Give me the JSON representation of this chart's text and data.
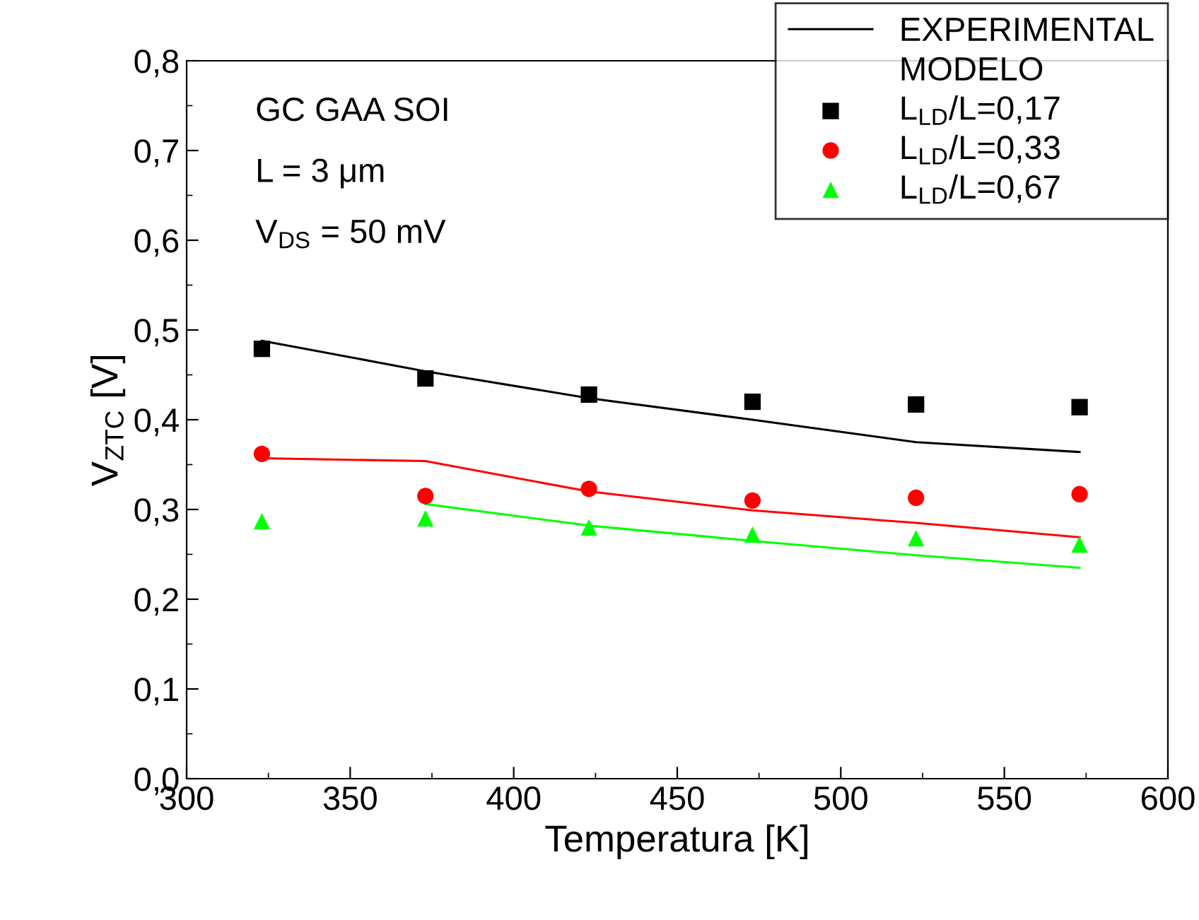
{
  "chart_data": {
    "type": "scatter",
    "xlabel": "Temperatura [K]",
    "ylabel": "V$_{ZTC}$ [V]",
    "x": [
      323,
      373,
      423,
      473,
      523,
      573
    ],
    "series": [
      {
        "name": "EXPERIMENTAL",
        "type": "line",
        "color": "#000000",
        "marker": "none",
        "values": [
          0.488,
          0.454,
          0.424,
          0.4,
          0.375,
          0.364
        ]
      },
      {
        "type": "line",
        "color": "#ff0000",
        "marker": "none",
        "values": [
          0.357,
          0.354,
          0.32,
          0.299,
          0.285,
          0.269
        ]
      },
      {
        "type": "line",
        "color": "#00ff00",
        "marker": "none",
        "values": [
          null,
          0.306,
          0.282,
          0.265,
          0.249,
          0.235
        ]
      },
      {
        "name": "L$_{LD}$/L=0,17",
        "color": "#000000",
        "marker": "square",
        "values": [
          0.479,
          0.446,
          0.428,
          0.42,
          0.417,
          0.414
        ]
      },
      {
        "name": "L$_{LD}$/L=0,33",
        "color": "#ff0000",
        "marker": "circle",
        "values": [
          0.362,
          0.315,
          0.323,
          0.31,
          0.313,
          0.317
        ]
      },
      {
        "name": "L$_{LD}$/L=0,67",
        "color": "#00ff00",
        "marker": "triangle",
        "values": [
          0.287,
          0.29,
          0.28,
          0.272,
          0.268,
          0.261
        ]
      }
    ],
    "legend_title": "MODELO",
    "annotations": [
      "GC GAA SOI",
      "L = 3 μm",
      "V$_{DS}$ = 50 mV"
    ],
    "xlim": [
      300,
      600
    ],
    "xticks": [
      300,
      350,
      400,
      450,
      500,
      550,
      600
    ],
    "ylim": [
      0,
      0.8
    ],
    "yticks": [
      {
        "value": 0,
        "label": "0,0"
      },
      {
        "value": 0.1,
        "label": "0,1"
      },
      {
        "value": 0.2,
        "label": "0,2"
      },
      {
        "value": 0.3,
        "label": "0,3"
      },
      {
        "value": 0.4,
        "label": "0,4"
      },
      {
        "value": 0.5,
        "label": "0,5"
      },
      {
        "value": 0.6,
        "label": "0,6"
      },
      {
        "value": 0.7,
        "label": "0,7"
      },
      {
        "value": 0.8,
        "label": "0,8"
      }
    ],
    "grid": false,
    "legend": "top right"
  }
}
